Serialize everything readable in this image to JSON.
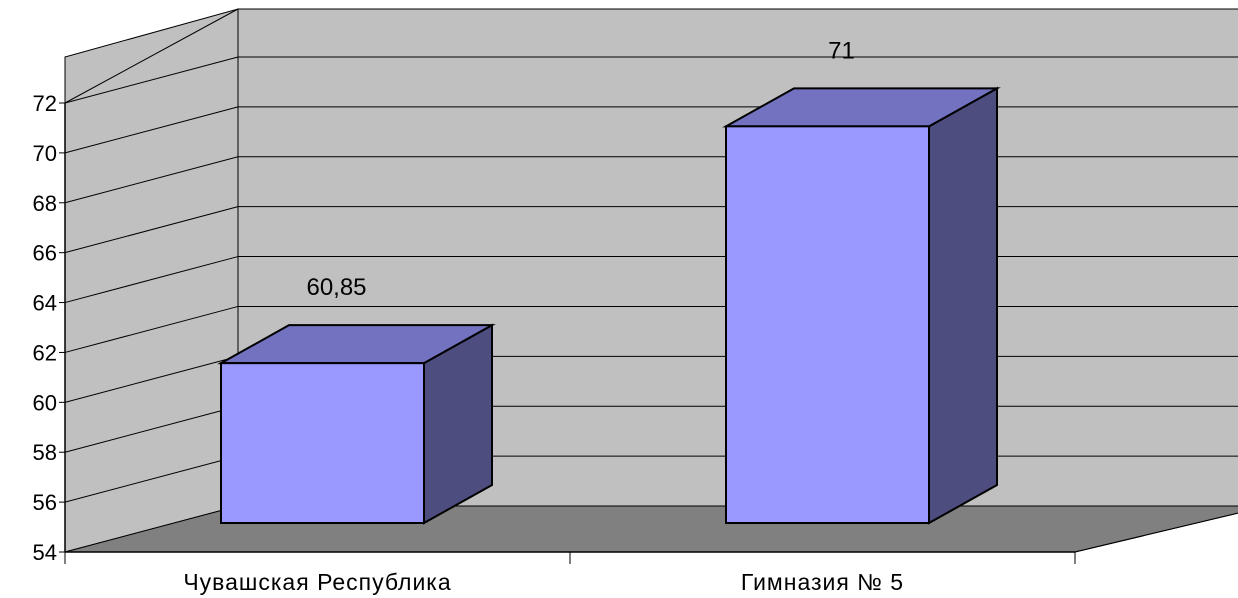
{
  "chart_data": {
    "type": "bar",
    "style": "3d-column",
    "categories": [
      "Чувашская Республика",
      "Гимназия  № 5"
    ],
    "values": [
      60.85,
      71
    ],
    "data_labels": [
      "60,85",
      "71"
    ],
    "ylim": [
      54,
      72
    ],
    "y_ticks": [
      "54",
      "56",
      "58",
      "60",
      "62",
      "64",
      "66",
      "68",
      "70",
      "72"
    ],
    "grid": true,
    "legend": "none",
    "colors": {
      "bar_front": "#9999ff",
      "bar_top": "#7272c0",
      "bar_side": "#4d4d80",
      "back_wall": "#c0c0c0",
      "side_wall": "#c0c0c0",
      "floor": "#808080"
    }
  }
}
